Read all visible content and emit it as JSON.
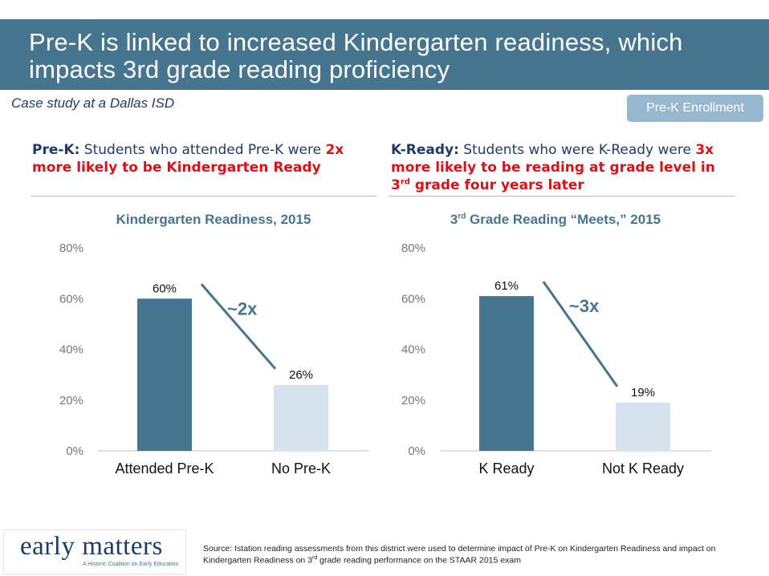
{
  "header": {
    "title": "Pre-K is linked to increased Kindergarten readiness, which impacts 3rd grade reading proficiency"
  },
  "subtitle": "Case study at a Dallas ISD",
  "enroll_button": "Pre-K Enrollment",
  "left_claim": {
    "lead": "Pre-K:",
    "text": " Students who attended Pre-K were ",
    "highlight": "2x more likely to be Kindergarten Ready"
  },
  "right_claim": {
    "lead": "K-Ready:",
    "text": " Students who were K-Ready were ",
    "highlight_pre": "3x more likely to be reading at grade level in 3",
    "highlight_sup": "rd",
    "highlight_post": " grade four years later"
  },
  "left_title": "Kindergarten Readiness, 2015",
  "right_title": {
    "pre": "3",
    "sup": "rd",
    "post": " Grade Reading “Meets,” 2015"
  },
  "chart_data": [
    {
      "type": "bar",
      "title": "Kindergarten Readiness, 2015",
      "categories": [
        "Attended Pre-K",
        "No Pre-K"
      ],
      "values": [
        60,
        26
      ],
      "value_labels": [
        "60%",
        "26%"
      ],
      "ylim": [
        0,
        80
      ],
      "yticks": [
        "0%",
        "20%",
        "40%",
        "60%",
        "80%"
      ],
      "annotation": "~2x",
      "colors": [
        "#467590",
        "#d6e3ec"
      ],
      "grid": false
    },
    {
      "type": "bar",
      "title": "3rd Grade Reading “Meets,” 2015",
      "categories": [
        "K Ready",
        "Not K Ready"
      ],
      "values": [
        61,
        19
      ],
      "value_labels": [
        "61%",
        "19%"
      ],
      "ylim": [
        0,
        80
      ],
      "yticks": [
        "0%",
        "20%",
        "40%",
        "60%",
        "80%"
      ],
      "annotation": "~3x",
      "colors": [
        "#467590",
        "#d6e3ec"
      ],
      "grid": false
    }
  ],
  "logo": {
    "name": "early matters",
    "tagline": "A Historic Coalition on Early Education"
  },
  "source": {
    "pre": "Source: Istation reading assessments from this district were used to determine impact of Pre-K on Kindergarten Readiness and impact on Kindergarten Readiness on 3",
    "sup": "rd",
    "post": " grade reading performance on the STAAR 2015 exam"
  }
}
